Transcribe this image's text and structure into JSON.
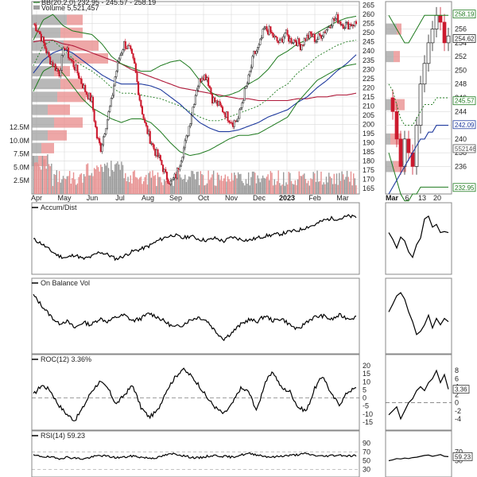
{
  "colors": {
    "price_up": "#222222",
    "price_down": "#cc1a2e",
    "bollinger": "#1e7a1e",
    "ma_blue": "#1f3a9e",
    "ma_red": "#b01a3a",
    "ma_dotted": "#1e7a1e",
    "volume_by_price_up": "#a0a0a0",
    "volume_by_price_down": "#e88a8a",
    "grid": "#d9d9d9"
  },
  "chart_data": [
    {
      "type": "line",
      "panel": "price",
      "title_lines": [
        "BB(20,2.0) 232.95 - 245.57 - 258.19",
        "Volume 5,521,457"
      ],
      "x_month_labels": [
        "Apr",
        "May",
        "Jun",
        "Jul",
        "Aug",
        "Sep",
        "Oct",
        "Nov",
        "Dec",
        "2023",
        "Feb",
        "Mar"
      ],
      "y_ticks": [
        165,
        170,
        175,
        180,
        185,
        190,
        195,
        200,
        205,
        210,
        215,
        220,
        225,
        230,
        235,
        240,
        245,
        250,
        255,
        260,
        265
      ],
      "ylim": [
        162,
        267
      ],
      "volume_ticks": [
        "2.5M",
        "5.0M",
        "7.5M",
        "10.0M",
        "12.5M"
      ],
      "price_anchors": {
        "x": [
          0,
          4,
          8,
          12,
          16,
          20,
          24,
          28,
          33,
          37,
          41,
          45,
          49,
          52,
          56,
          60,
          63,
          66,
          70,
          74,
          78,
          82,
          86,
          90,
          94,
          98,
          102,
          106,
          110,
          114,
          118,
          122,
          126,
          130,
          134,
          138,
          142,
          146,
          150,
          154,
          158,
          162,
          166,
          170,
          174,
          178,
          182,
          186,
          190,
          194,
          198,
          202,
          206,
          210,
          214,
          218,
          222,
          226,
          230,
          234,
          238,
          242,
          246,
          249
        ],
        "close": [
          255,
          251,
          244,
          236,
          232,
          228,
          243,
          236,
          230,
          223,
          217,
          213,
          193,
          187,
          200,
          212,
          226,
          236,
          244,
          241,
          232,
          214,
          200,
          192,
          185,
          180,
          172,
          168,
          172,
          182,
          192,
          206,
          220,
          227,
          226,
          214,
          211,
          208,
          204,
          201,
          203,
          215,
          225,
          238,
          242,
          252,
          251,
          247,
          244,
          250,
          246,
          246,
          243,
          247,
          249,
          246,
          249,
          252,
          256,
          258,
          255,
          254,
          255,
          255
        ]
      },
      "bb_center": [
        232,
        243,
        246,
        241,
        236,
        232,
        229,
        225,
        220,
        217,
        217,
        216,
        215,
        214,
        212,
        210,
        207,
        204,
        202,
        202,
        204,
        206,
        208,
        210,
        214,
        219,
        222,
        228,
        232,
        237,
        240,
        243,
        245,
        246
      ],
      "bb_spread": [
        14,
        14,
        14,
        13,
        15,
        18,
        20,
        19,
        17,
        16,
        14,
        13,
        14,
        18,
        22,
        25,
        24,
        20,
        16,
        13,
        12,
        12,
        14,
        15,
        16,
        18,
        18,
        16,
        14,
        13,
        13,
        13,
        13,
        13
      ],
      "ma_blue": [
        228,
        235,
        239,
        241,
        239,
        235,
        231,
        227,
        224,
        222,
        222,
        222,
        221,
        219,
        215,
        211,
        206,
        201,
        198,
        196,
        196,
        197,
        199,
        201,
        204,
        206,
        208,
        212,
        215,
        220,
        224,
        229,
        233,
        238
      ],
      "ma_red": [
        245,
        246,
        246,
        244,
        243,
        241,
        239,
        237,
        235,
        233,
        230,
        228,
        226,
        224,
        222,
        220,
        219,
        218,
        217,
        216,
        215,
        214,
        214,
        213,
        213,
        213,
        213,
        214,
        214,
        215,
        215,
        216,
        216,
        217
      ],
      "volume_by_price": [
        {
          "price": 257,
          "up": 0.55,
          "down": 0.25
        },
        {
          "price": 250,
          "up": 0.45,
          "down": 0.35
        },
        {
          "price": 243,
          "up": 0.5,
          "down": 0.55
        },
        {
          "price": 236,
          "up": 0.65,
          "down": 0.55
        },
        {
          "price": 229,
          "up": 0.35,
          "down": 0.25
        },
        {
          "price": 222,
          "up": 0.45,
          "down": 0.35
        },
        {
          "price": 215,
          "up": 0.4,
          "down": 0.45
        },
        {
          "price": 208,
          "up": 0.25,
          "down": 0.35
        },
        {
          "price": 201,
          "up": 0.35,
          "down": 0.45
        },
        {
          "price": 194,
          "up": 0.25,
          "down": 0.3
        },
        {
          "price": 187,
          "up": 0.15,
          "down": 0.2
        },
        {
          "price": 180,
          "up": 0.1,
          "down": 0.15
        }
      ]
    },
    {
      "type": "line",
      "panel": "accum_dist",
      "title": "Accum/Dist",
      "values": [
        58,
        50,
        38,
        28,
        24,
        30,
        22,
        26,
        35,
        30,
        22,
        28,
        36,
        40,
        46,
        55,
        62,
        66,
        60,
        64,
        58,
        56,
        60,
        54,
        62,
        58,
        56,
        60,
        64,
        66,
        68,
        72,
        74,
        80,
        84,
        92,
        96,
        95,
        100,
        98
      ],
      "ylim": [
        0,
        110
      ]
    },
    {
      "type": "line",
      "panel": "obv",
      "title": "On Balance Vol",
      "values": [
        86,
        70,
        55,
        42,
        46,
        35,
        44,
        40,
        50,
        45,
        52,
        55,
        46,
        50,
        58,
        52,
        44,
        36,
        40,
        48,
        52,
        46,
        30,
        18,
        28,
        40,
        48,
        45,
        54,
        46,
        50,
        40,
        32,
        45,
        52,
        54,
        48,
        55,
        50,
        52
      ],
      "ylim": [
        0,
        100
      ]
    },
    {
      "type": "line",
      "panel": "roc",
      "title": "ROC(12) 3.36%",
      "y_ticks": [
        -15,
        -10,
        -5,
        0,
        5,
        10,
        15,
        20
      ],
      "ylim": [
        -18,
        22
      ],
      "values": [
        2,
        8,
        5,
        -4,
        -10,
        -14,
        -6,
        4,
        10,
        6,
        -4,
        2,
        8,
        -6,
        -12,
        -8,
        4,
        12,
        18,
        14,
        8,
        0,
        -6,
        -10,
        -4,
        6,
        4,
        -8,
        10,
        16,
        6,
        4,
        -6,
        -8,
        6,
        14,
        2,
        -4,
        4,
        6
      ],
      "zero_line": 0
    },
    {
      "type": "line",
      "panel": "rsi",
      "title": "RSI(14) 59.23",
      "y_ticks": [
        30,
        50,
        70,
        90
      ],
      "ylim": [
        20,
        100
      ],
      "values": [
        62,
        60,
        58,
        55,
        58,
        56,
        54,
        58,
        62,
        60,
        57,
        58,
        61,
        58,
        56,
        57,
        63,
        66,
        62,
        58,
        56,
        60,
        62,
        60,
        58,
        63,
        66,
        64,
        60,
        58,
        61,
        62,
        64,
        66,
        62,
        60,
        62,
        63,
        61,
        62
      ]
    },
    {
      "type": "line",
      "panel": "zoom_price",
      "x_labels": [
        "Mar",
        "6",
        "13",
        "20"
      ],
      "y_ticks": [
        236,
        238,
        240,
        242,
        244,
        246,
        248,
        250,
        252,
        254,
        256,
        258
      ],
      "ylim": [
        232,
        260
      ],
      "tags": [
        {
          "label": "258.19",
          "value": 258.19,
          "color": "#1e7a1e"
        },
        {
          "label": "254.62",
          "value": 254.62,
          "color": "#222222"
        },
        {
          "label": "245.57",
          "value": 245.57,
          "color": "#1e7a1e"
        },
        {
          "label": "242.09",
          "value": 242.09,
          "color": "#1f3a9e"
        },
        {
          "label": "552146",
          "value": 238.6,
          "color": "#555555"
        },
        {
          "label": "232.95",
          "value": 232.95,
          "color": "#1e7a1e"
        }
      ]
    },
    {
      "type": "line",
      "panel": "zoom_roc",
      "y_ticks": [
        -4,
        -2,
        0,
        2,
        4,
        6,
        8
      ],
      "ylim": [
        -6,
        10
      ],
      "tag": "3.36"
    },
    {
      "type": "line",
      "panel": "zoom_rsi",
      "y_ticks": [
        50,
        70
      ],
      "tag": "59.23"
    }
  ]
}
